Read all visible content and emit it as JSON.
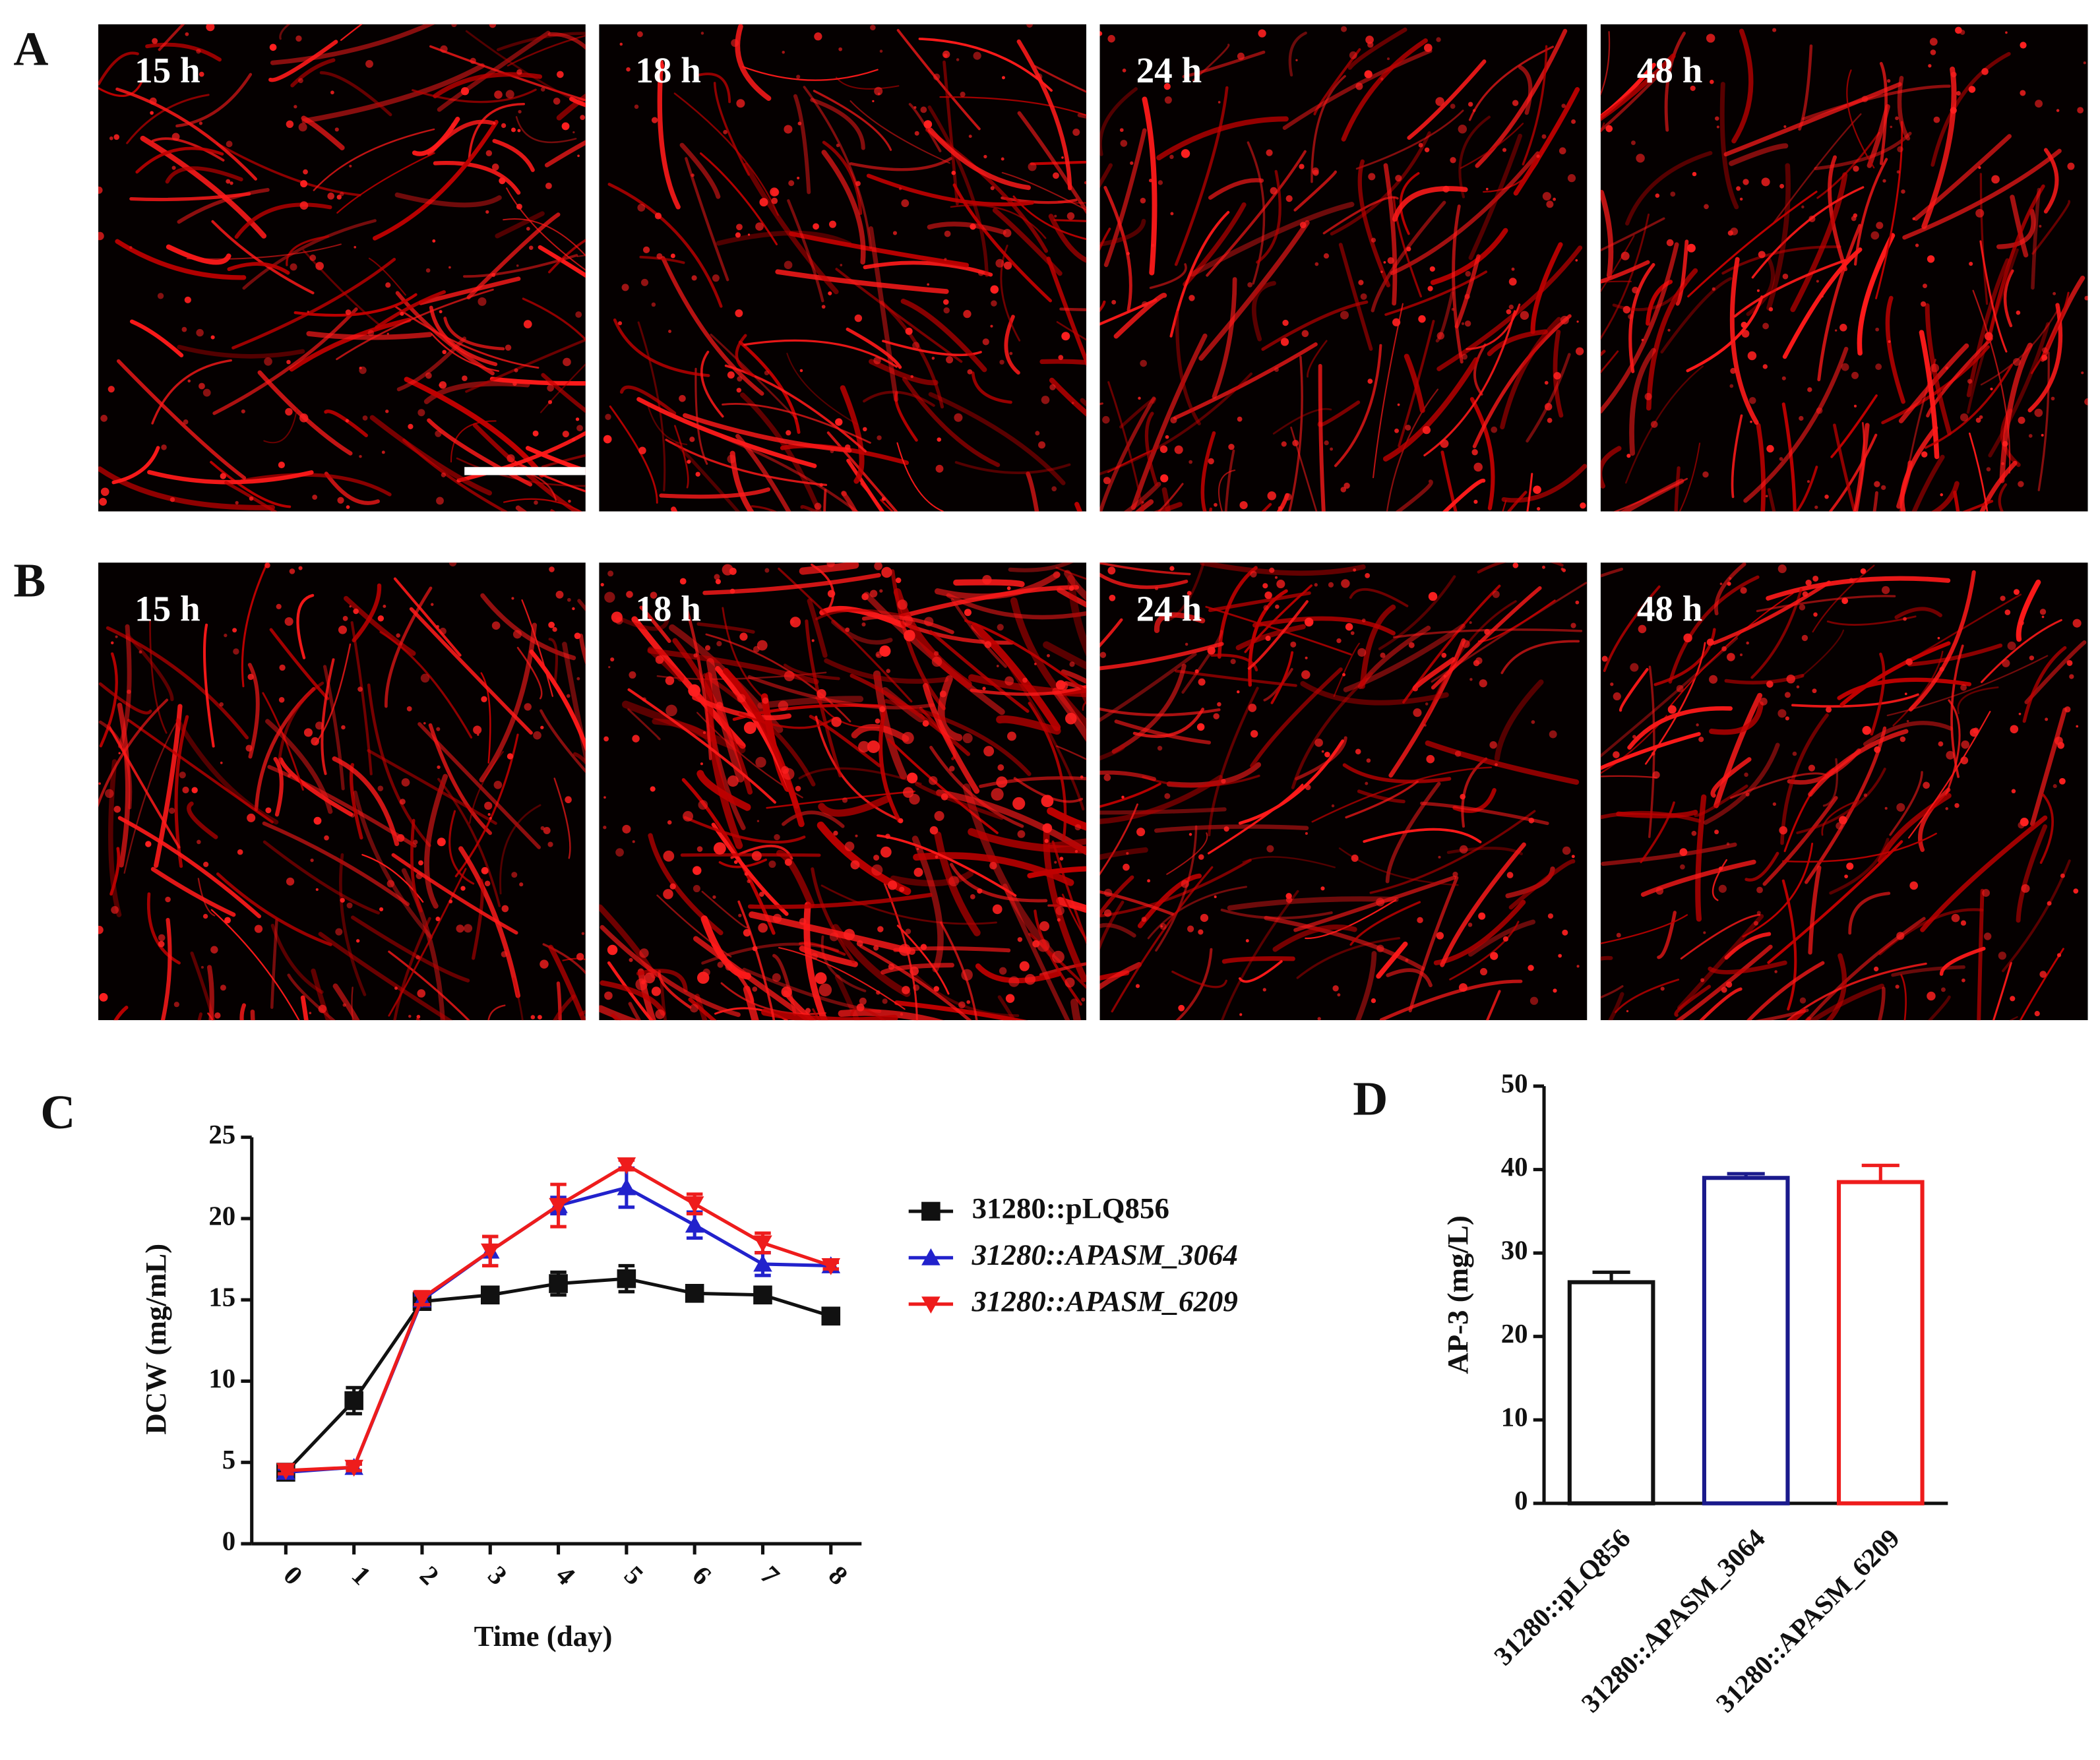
{
  "figure_panels": [
    {
      "label": "A",
      "images": [
        "15 h",
        "18 h",
        "24 h",
        "48 h"
      ]
    },
    {
      "label": "B",
      "images": [
        "15 h",
        "18 h",
        "24 h",
        "48 h"
      ]
    }
  ],
  "chart_data": [
    {
      "type": "line",
      "panel_label": "C",
      "x_label": "Time (day)",
      "y_label": "DCW (mg/mL)",
      "x": [
        0,
        1,
        2,
        3,
        4,
        5,
        6,
        7,
        8
      ],
      "xlim": [
        -0.5,
        8.45
      ],
      "xticks": [
        0,
        1,
        2,
        3,
        4,
        5,
        6,
        7,
        8
      ],
      "ylim": [
        0,
        25
      ],
      "yticks": [
        0,
        5,
        10,
        15,
        20,
        25
      ],
      "series": [
        {
          "name": "31280::pLQ856",
          "color": "#111111",
          "marker": "square",
          "values": [
            4.4,
            8.8,
            14.9,
            15.3,
            16.0,
            16.3,
            15.4,
            15.3,
            14.0
          ],
          "errors": [
            0.3,
            0.8,
            0.3,
            0.3,
            0.7,
            0.8,
            0.3,
            0.2,
            0.3
          ]
        },
        {
          "name": "31280::APASM_3064",
          "color": "#2222cc",
          "marker": "triangle-up",
          "values": [
            4.4,
            4.7,
            15.0,
            18.0,
            20.8,
            21.9,
            19.6,
            17.2,
            17.1
          ],
          "errors": [
            0.2,
            0.2,
            0.3,
            0.9,
            0.5,
            1.2,
            0.8,
            0.7,
            0.3
          ]
        },
        {
          "name": "31280::APASM_6209",
          "color": "#ee1c1c",
          "marker": "triangle-down",
          "values": [
            4.5,
            4.7,
            15.1,
            18.0,
            20.8,
            23.3,
            20.9,
            18.5,
            17.1
          ],
          "errors": [
            0.2,
            0.2,
            0.4,
            0.9,
            1.3,
            0.3,
            0.6,
            0.6,
            0.2
          ]
        }
      ]
    },
    {
      "type": "bar",
      "panel_label": "D",
      "y_label": "AP-3 (mg/L)",
      "categories": [
        "31280::pLQ856",
        "31280::APASM_3064",
        "31280::APASM_6209"
      ],
      "values": [
        26.5,
        39.0,
        38.5
      ],
      "errors": [
        1.2,
        0.5,
        2.0
      ],
      "colors": [
        "#111111",
        "#1a1a8c",
        "#ee1c1c"
      ],
      "fill": "none",
      "ylim": [
        0,
        50
      ],
      "yticks": [
        0,
        10,
        20,
        30,
        40,
        50
      ]
    }
  ]
}
